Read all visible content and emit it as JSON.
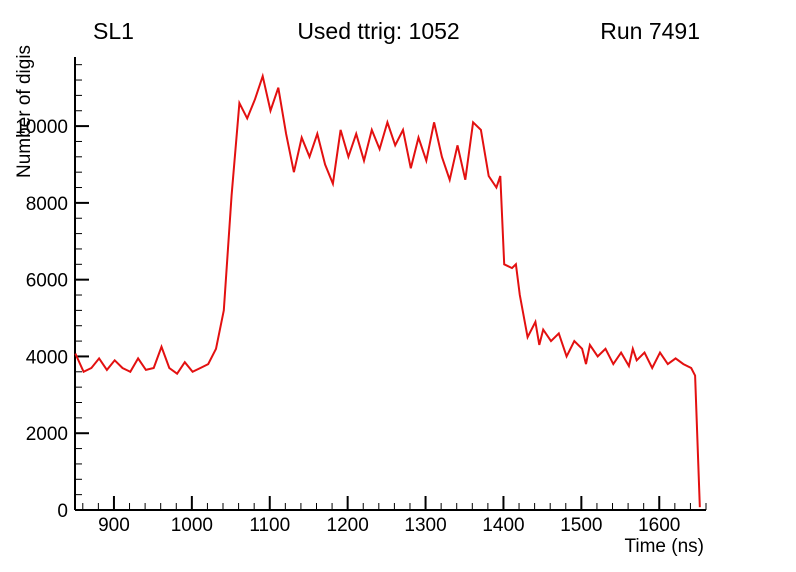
{
  "header": {
    "left": "SL1",
    "center": "Used ttrig: 1052",
    "right": "Run 7491"
  },
  "chart_data": {
    "type": "line",
    "title": "Used ttrig: 1052",
    "subtitle_left": "SL1",
    "subtitle_right": "Run 7491",
    "xlabel": "Time (ns)",
    "ylabel": "Number of digis",
    "xlim": [
      850,
      1660
    ],
    "ylim": [
      0,
      11800
    ],
    "x_ticks": [
      900,
      1000,
      1100,
      1200,
      1300,
      1400,
      1500,
      1600
    ],
    "x_minor_step": 20,
    "y_ticks": [
      0,
      2000,
      4000,
      6000,
      8000,
      10000
    ],
    "y_minor_step": 400,
    "grid": "off",
    "legend": "none",
    "line_color": "#e31010",
    "axis_color": "#000000",
    "series": [
      {
        "name": "number-of-digis",
        "points": [
          [
            851,
            4050
          ],
          [
            861,
            3600
          ],
          [
            871,
            3700
          ],
          [
            881,
            3950
          ],
          [
            891,
            3650
          ],
          [
            901,
            3900
          ],
          [
            911,
            3700
          ],
          [
            921,
            3600
          ],
          [
            931,
            3950
          ],
          [
            941,
            3650
          ],
          [
            951,
            3700
          ],
          [
            961,
            4250
          ],
          [
            971,
            3700
          ],
          [
            981,
            3550
          ],
          [
            991,
            3850
          ],
          [
            1001,
            3600
          ],
          [
            1011,
            3700
          ],
          [
            1021,
            3800
          ],
          [
            1031,
            4200
          ],
          [
            1041,
            5200
          ],
          [
            1051,
            8200
          ],
          [
            1061,
            10600
          ],
          [
            1071,
            10200
          ],
          [
            1081,
            10700
          ],
          [
            1091,
            11300
          ],
          [
            1101,
            10400
          ],
          [
            1111,
            11000
          ],
          [
            1121,
            9800
          ],
          [
            1131,
            8800
          ],
          [
            1141,
            9700
          ],
          [
            1151,
            9200
          ],
          [
            1161,
            9800
          ],
          [
            1171,
            9000
          ],
          [
            1181,
            8500
          ],
          [
            1191,
            9900
          ],
          [
            1201,
            9200
          ],
          [
            1211,
            9800
          ],
          [
            1221,
            9100
          ],
          [
            1231,
            9900
          ],
          [
            1241,
            9400
          ],
          [
            1251,
            10100
          ],
          [
            1261,
            9500
          ],
          [
            1271,
            9900
          ],
          [
            1281,
            8900
          ],
          [
            1291,
            9700
          ],
          [
            1301,
            9100
          ],
          [
            1311,
            10100
          ],
          [
            1321,
            9200
          ],
          [
            1331,
            8600
          ],
          [
            1341,
            9500
          ],
          [
            1351,
            8600
          ],
          [
            1361,
            10100
          ],
          [
            1371,
            9900
          ],
          [
            1381,
            8700
          ],
          [
            1391,
            8400
          ],
          [
            1396,
            8700
          ],
          [
            1401,
            6400
          ],
          [
            1411,
            6300
          ],
          [
            1416,
            6400
          ],
          [
            1421,
            5600
          ],
          [
            1431,
            4500
          ],
          [
            1441,
            4900
          ],
          [
            1446,
            4300
          ],
          [
            1451,
            4700
          ],
          [
            1461,
            4400
          ],
          [
            1471,
            4600
          ],
          [
            1481,
            4000
          ],
          [
            1491,
            4400
          ],
          [
            1501,
            4200
          ],
          [
            1506,
            3800
          ],
          [
            1511,
            4300
          ],
          [
            1521,
            4000
          ],
          [
            1531,
            4200
          ],
          [
            1541,
            3800
          ],
          [
            1551,
            4100
          ],
          [
            1561,
            3750
          ],
          [
            1566,
            4200
          ],
          [
            1571,
            3900
          ],
          [
            1581,
            4100
          ],
          [
            1591,
            3700
          ],
          [
            1601,
            4100
          ],
          [
            1611,
            3800
          ],
          [
            1621,
            3950
          ],
          [
            1631,
            3800
          ],
          [
            1641,
            3700
          ],
          [
            1646,
            3500
          ],
          [
            1652,
            100
          ]
        ]
      }
    ]
  }
}
